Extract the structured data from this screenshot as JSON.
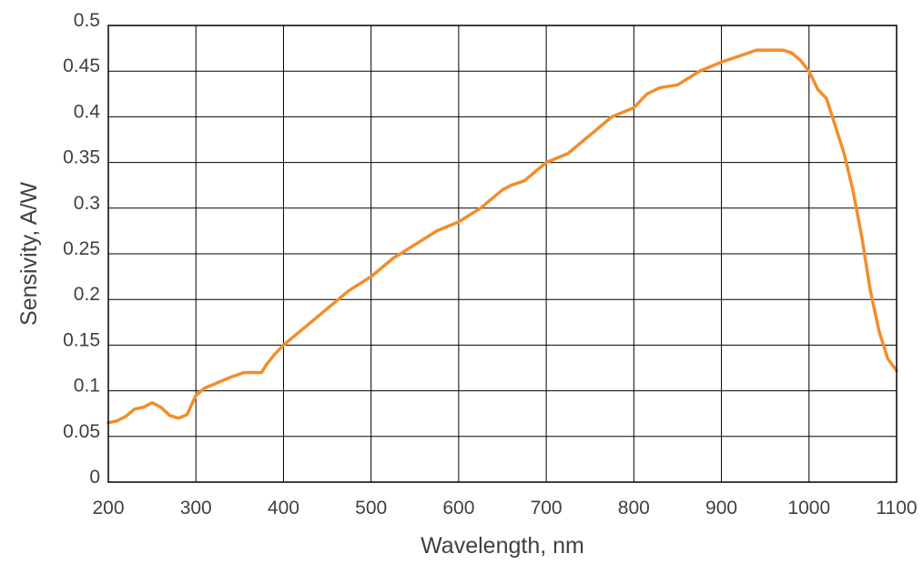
{
  "chart_data": {
    "type": "line",
    "xlabel": "Wavelength, nm",
    "ylabel": "Sensivity, A/W",
    "xlim": [
      200,
      1100
    ],
    "ylim": [
      0,
      0.5
    ],
    "x_ticks": [
      "200",
      "300",
      "400",
      "500",
      "600",
      "700",
      "800",
      "900",
      "1000",
      "1100"
    ],
    "y_ticks": [
      "0",
      "0.05",
      "0.1",
      "0.15",
      "0.2",
      "0.25",
      "0.3",
      "0.35",
      "0.4",
      "0.45",
      "0.5"
    ],
    "grid": true,
    "series": [
      {
        "color": "#f28e2b",
        "x": [
          200,
          210,
          220,
          230,
          240,
          250,
          260,
          270,
          280,
          290,
          300,
          310,
          320,
          340,
          355,
          375,
          380,
          390,
          400,
          425,
          450,
          475,
          500,
          525,
          550,
          575,
          600,
          625,
          650,
          660,
          675,
          700,
          725,
          750,
          775,
          800,
          815,
          830,
          850,
          875,
          900,
          925,
          940,
          970,
          980,
          990,
          1000,
          1010,
          1020,
          1030,
          1040,
          1050,
          1060,
          1070,
          1080,
          1090,
          1100
        ],
        "y": [
          0.065,
          0.067,
          0.072,
          0.08,
          0.082,
          0.087,
          0.082,
          0.073,
          0.07,
          0.074,
          0.095,
          0.103,
          0.107,
          0.115,
          0.12,
          0.12,
          0.128,
          0.14,
          0.15,
          0.17,
          0.19,
          0.21,
          0.225,
          0.245,
          0.26,
          0.275,
          0.285,
          0.3,
          0.32,
          0.325,
          0.33,
          0.35,
          0.36,
          0.38,
          0.4,
          0.41,
          0.425,
          0.432,
          0.435,
          0.45,
          0.46,
          0.468,
          0.473,
          0.473,
          0.47,
          0.462,
          0.45,
          0.43,
          0.42,
          0.39,
          0.36,
          0.32,
          0.27,
          0.21,
          0.165,
          0.135,
          0.122
        ]
      }
    ]
  }
}
